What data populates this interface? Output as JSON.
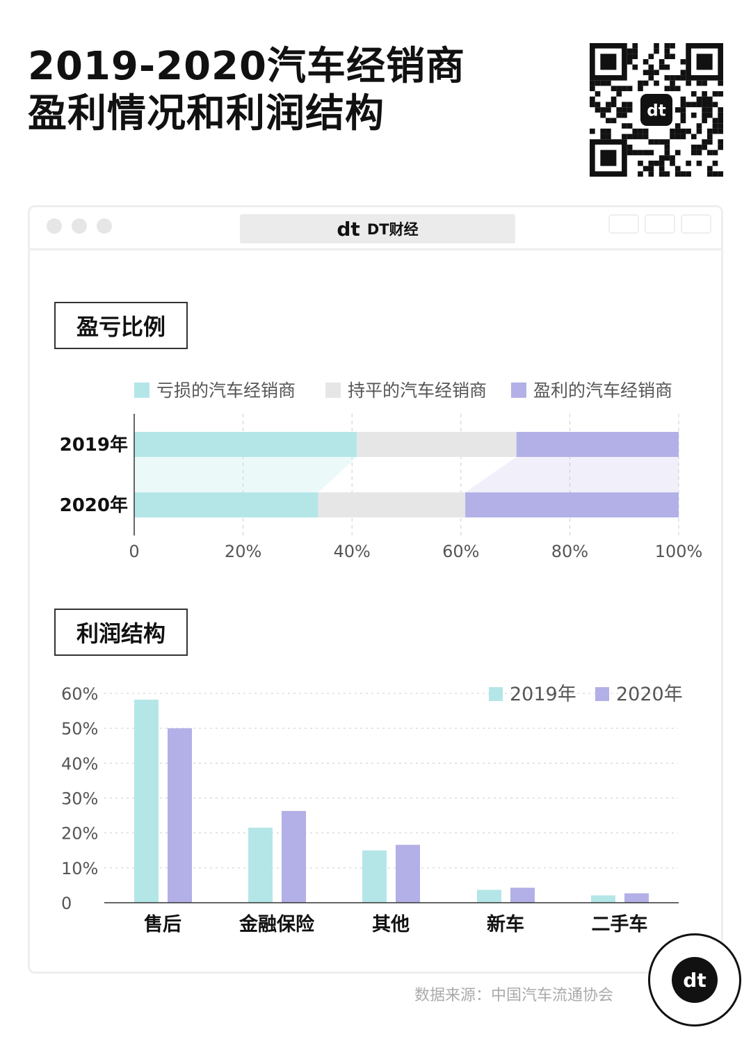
{
  "title_line1": "2019-2020汽车经销商",
  "title_line2": "盈利情况和利润结构",
  "window_title": "DT财经",
  "logo_text": "dt",
  "qr_logo_text": "dt",
  "colors": {
    "teal": "#b4e6e8",
    "gray": "#e6e6e6",
    "purple": "#b2b0e6"
  },
  "section1": "盈亏比例",
  "section2": "利润结构",
  "source": "数据来源：中国汽车流通协会",
  "chart_data": [
    {
      "type": "bar",
      "orientation": "horizontal",
      "stacked": true,
      "title": "盈亏比例",
      "categories": [
        "2019年",
        "2020年"
      ],
      "series": [
        {
          "name": "亏损的汽车经销商",
          "values": [
            40.9,
            33.8
          ]
        },
        {
          "name": "持平的汽车经销商",
          "values": [
            29.3,
            27.0
          ]
        },
        {
          "name": "盈利的汽车经销商",
          "values": [
            29.8,
            39.2
          ]
        }
      ],
      "xlim": [
        0,
        100
      ],
      "xticks": [
        "0",
        "20%",
        "40%",
        "60%",
        "80%",
        "100%"
      ],
      "legend": "top"
    },
    {
      "type": "bar",
      "title": "利润结构",
      "categories": [
        "售后",
        "金融保险",
        "其他",
        "新车",
        "二手车"
      ],
      "series": [
        {
          "name": "2019年",
          "values": [
            58.2,
            21.5,
            15.0,
            3.7,
            2.1
          ]
        },
        {
          "name": "2020年",
          "values": [
            50.0,
            26.3,
            16.6,
            4.3,
            2.7
          ]
        }
      ],
      "ylim": [
        0,
        60
      ],
      "yticks": [
        "0",
        "10%",
        "20%",
        "30%",
        "40%",
        "50%",
        "60%"
      ],
      "legend": "top-right"
    }
  ]
}
